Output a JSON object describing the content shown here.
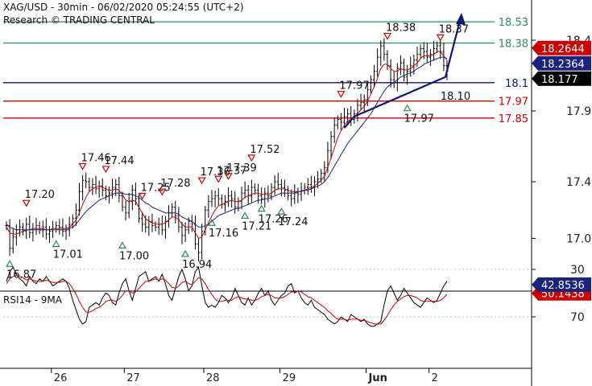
{
  "header": {
    "title": "XAG/USD - 30min - 06/02/2020 05:24:55 (UTC+2)",
    "subtitle": "Research © TRADING CENTRAL"
  },
  "rsi_label": "RSI14 - 9MA",
  "colors": {
    "price": "#000000",
    "ma_fast": "#cc0000",
    "ma_slow": "#1a237e",
    "resistance": "#2e8b57",
    "support_blue": "#0d1670",
    "support_red": "#cc0000",
    "pivot_arrow": "#0d1670"
  },
  "chart_data": [
    {
      "type": "line",
      "name": "price",
      "x_ticks": [
        "26",
        "27",
        "28",
        "29",
        "Jun",
        "2"
      ],
      "y_ticks": [
        17.0,
        17.4,
        17.9,
        18.4
      ],
      "ylim": [
        16.82,
        18.6
      ],
      "close": [
        17.09,
        16.93,
        17.01,
        17.06,
        17.08,
        17.05,
        17.1,
        17.04,
        17.07,
        17.09,
        17.06,
        17.08,
        17.03,
        17.05,
        17.07,
        17.09,
        17.08,
        17.05,
        17.06,
        17.1,
        17.14,
        17.2,
        17.33,
        17.41,
        17.4,
        17.36,
        17.38,
        17.35,
        17.37,
        17.34,
        17.3,
        17.32,
        17.36,
        17.38,
        17.3,
        17.22,
        17.18,
        17.26,
        17.34,
        17.28,
        17.14,
        17.1,
        17.08,
        17.12,
        17.09,
        17.08,
        17.1,
        17.06,
        17.12,
        17.18,
        17.22,
        17.16,
        17.08,
        17.02,
        17.06,
        17.12,
        17.1,
        16.96,
        16.9,
        17.05,
        17.2,
        17.26,
        17.28,
        17.3,
        17.28,
        17.24,
        17.26,
        17.3,
        17.28,
        17.22,
        17.26,
        17.32,
        17.34,
        17.3,
        17.36,
        17.34,
        17.3,
        17.28,
        17.32,
        17.3,
        17.36,
        17.4,
        17.38,
        17.36,
        17.34,
        17.3,
        17.28,
        17.32,
        17.31,
        17.34,
        17.36,
        17.38,
        17.36,
        17.4,
        17.42,
        17.46,
        17.5,
        17.62,
        17.72,
        17.8,
        17.84,
        17.82,
        17.86,
        17.88,
        17.84,
        17.88,
        17.94,
        17.96,
        17.98,
        18.05,
        18.12,
        18.18,
        18.28,
        18.36,
        18.3,
        18.22,
        18.12,
        18.1,
        18.2,
        18.24,
        18.14,
        18.18,
        18.22,
        18.26,
        18.3,
        18.34,
        18.32,
        18.28,
        18.3,
        18.34,
        18.36,
        18.32,
        18.22,
        18.18
      ],
      "ma_fast": [
        17.08,
        17.04,
        17.03,
        17.03,
        17.04,
        17.05,
        17.06,
        17.06,
        17.07,
        17.07,
        17.07,
        17.07,
        17.06,
        17.06,
        17.07,
        17.07,
        17.07,
        17.07,
        17.07,
        17.08,
        17.1,
        17.13,
        17.18,
        17.24,
        17.29,
        17.33,
        17.35,
        17.36,
        17.37,
        17.36,
        17.35,
        17.34,
        17.34,
        17.35,
        17.34,
        17.31,
        17.27,
        17.26,
        17.27,
        17.26,
        17.22,
        17.18,
        17.14,
        17.12,
        17.11,
        17.1,
        17.1,
        17.1,
        17.11,
        17.13,
        17.15,
        17.15,
        17.13,
        17.1,
        17.08,
        17.08,
        17.08,
        17.04,
        17.0,
        17.01,
        17.06,
        17.11,
        17.16,
        17.2,
        17.23,
        17.24,
        17.25,
        17.26,
        17.27,
        17.26,
        17.26,
        17.27,
        17.29,
        17.3,
        17.31,
        17.32,
        17.32,
        17.31,
        17.31,
        17.31,
        17.32,
        17.34,
        17.35,
        17.35,
        17.35,
        17.34,
        17.33,
        17.33,
        17.33,
        17.33,
        17.34,
        17.35,
        17.36,
        17.37,
        17.39,
        17.41,
        17.44,
        17.5,
        17.57,
        17.64,
        17.71,
        17.76,
        17.8,
        17.83,
        17.84,
        17.86,
        17.88,
        17.91,
        17.93,
        17.97,
        18.02,
        18.07,
        18.13,
        18.2,
        18.23,
        18.23,
        18.2,
        18.18,
        18.18,
        18.2,
        18.19,
        18.19,
        18.2,
        18.22,
        18.24,
        18.27,
        18.29,
        18.29,
        18.29,
        18.3,
        18.32,
        18.32,
        18.29,
        18.26
      ],
      "ma_slow": [
        17.1,
        17.08,
        17.07,
        17.06,
        17.06,
        17.06,
        17.06,
        17.06,
        17.06,
        17.06,
        17.06,
        17.06,
        17.06,
        17.06,
        17.06,
        17.06,
        17.06,
        17.06,
        17.06,
        17.07,
        17.08,
        17.1,
        17.13,
        17.16,
        17.19,
        17.21,
        17.23,
        17.25,
        17.27,
        17.28,
        17.29,
        17.3,
        17.31,
        17.32,
        17.32,
        17.32,
        17.31,
        17.31,
        17.31,
        17.3,
        17.29,
        17.27,
        17.25,
        17.24,
        17.22,
        17.21,
        17.2,
        17.19,
        17.18,
        17.18,
        17.18,
        17.18,
        17.17,
        17.15,
        17.14,
        17.13,
        17.12,
        17.1,
        17.08,
        17.08,
        17.09,
        17.1,
        17.12,
        17.14,
        17.16,
        17.17,
        17.18,
        17.19,
        17.2,
        17.21,
        17.21,
        17.22,
        17.23,
        17.24,
        17.25,
        17.26,
        17.27,
        17.27,
        17.28,
        17.28,
        17.29,
        17.3,
        17.31,
        17.32,
        17.32,
        17.32,
        17.32,
        17.32,
        17.33,
        17.33,
        17.34,
        17.34,
        17.35,
        17.36,
        17.37,
        17.38,
        17.4,
        17.43,
        17.47,
        17.51,
        17.55,
        17.59,
        17.63,
        17.67,
        17.7,
        17.73,
        17.76,
        17.79,
        17.82,
        17.85,
        17.88,
        17.92,
        17.96,
        18.0,
        18.04,
        18.07,
        18.09,
        18.1,
        18.12,
        18.14,
        18.15,
        18.16,
        18.17,
        18.18,
        18.2,
        18.21,
        18.23,
        18.24,
        18.25,
        18.26,
        18.27,
        18.28,
        18.28,
        18.27
      ]
    },
    {
      "type": "line",
      "name": "rsi",
      "y_ticks": [
        30,
        70
      ],
      "ylim": [
        20,
        85
      ],
      "rsi": [
        40,
        32,
        28,
        34,
        38,
        40,
        44,
        36,
        40,
        42,
        38,
        40,
        36,
        40,
        44,
        42,
        40,
        38,
        40,
        46,
        56,
        64,
        72,
        76,
        74,
        62,
        60,
        58,
        60,
        54,
        50,
        52,
        58,
        60,
        50,
        42,
        38,
        48,
        56,
        46,
        36,
        34,
        32,
        40,
        38,
        36,
        40,
        34,
        42,
        52,
        56,
        46,
        36,
        30,
        38,
        48,
        44,
        32,
        28,
        44,
        58,
        62,
        60,
        62,
        58,
        52,
        54,
        58,
        54,
        46,
        52,
        58,
        60,
        54,
        60,
        56,
        50,
        46,
        52,
        48,
        56,
        60,
        56,
        52,
        50,
        44,
        42,
        50,
        48,
        54,
        58,
        60,
        56,
        62,
        64,
        66,
        68,
        72,
        74,
        76,
        74,
        70,
        72,
        74,
        68,
        70,
        72,
        74,
        72,
        76,
        78,
        78,
        76,
        74,
        60,
        48,
        44,
        50,
        56,
        52,
        46,
        50,
        54,
        58,
        60,
        62,
        58,
        54,
        56,
        58,
        56,
        50,
        44,
        40
      ],
      "rsi_ma": [
        42,
        38,
        36,
        35,
        36,
        37,
        39,
        38,
        39,
        40,
        40,
        40,
        39,
        40,
        41,
        41,
        41,
        40,
        40,
        42,
        46,
        51,
        57,
        62,
        66,
        66,
        65,
        63,
        62,
        60,
        57,
        56,
        56,
        57,
        55,
        52,
        48,
        48,
        50,
        49,
        46,
        43,
        40,
        40,
        39,
        38,
        39,
        38,
        39,
        42,
        45,
        46,
        44,
        41,
        40,
        42,
        43,
        40,
        37,
        38,
        42,
        47,
        51,
        55,
        57,
        57,
        56,
        56,
        56,
        54,
        53,
        54,
        55,
        55,
        56,
        56,
        55,
        53,
        52,
        51,
        52,
        54,
        54,
        54,
        53,
        51,
        49,
        49,
        48,
        49,
        51,
        53,
        54,
        56,
        58,
        60,
        62,
        65,
        67,
        70,
        72,
        72,
        72,
        73,
        72,
        72,
        72,
        73,
        73,
        74,
        75,
        76,
        76,
        76,
        73,
        69,
        64,
        60,
        57,
        55,
        53,
        52,
        52,
        53,
        54,
        56,
        57,
        57,
        57,
        57,
        57,
        56,
        54,
        51
      ]
    }
  ],
  "levels": [
    {
      "name": "resistance-2",
      "value": 18.53,
      "label": "18.53",
      "color": "#2e8b57"
    },
    {
      "name": "resistance-1",
      "value": 18.38,
      "label": "18.38",
      "color": "#2e8b57"
    },
    {
      "name": "pivot",
      "value": 18.1,
      "label": "18.1",
      "color": "#0d1670"
    },
    {
      "name": "support-1",
      "value": 17.97,
      "label": "17.97",
      "color": "#cc0000"
    },
    {
      "name": "support-2",
      "value": 17.85,
      "label": "17.85",
      "color": "#cc0000"
    }
  ],
  "price_tags": [
    {
      "name": "ma-fast-tag",
      "value": 18.2644,
      "label": "18.2644",
      "bg": "#cc0000"
    },
    {
      "name": "ma-slow-tag",
      "value": 18.2364,
      "label": "18.2364",
      "bg": "#1a237e"
    },
    {
      "name": "last-price-tag",
      "value": 18.177,
      "label": "18.177",
      "bg": "#000000"
    }
  ],
  "rsi_tags": [
    {
      "name": "rsi-ma-tag",
      "value": 50.1438,
      "label": "50.1438",
      "bg": "#cc0000"
    },
    {
      "name": "rsi-tag",
      "value": 42.8536,
      "label": "42.8536",
      "bg": "#1a237e"
    }
  ],
  "annotations": [
    {
      "text": "16.87",
      "idx": 1,
      "value": 16.87,
      "kind": "low"
    },
    {
      "text": "17.20",
      "idx": 6,
      "value": 17.2,
      "kind": "high"
    },
    {
      "text": "17.01",
      "idx": 15,
      "value": 17.01,
      "kind": "low"
    },
    {
      "text": "17.46",
      "idx": 23,
      "value": 17.46,
      "kind": "high"
    },
    {
      "text": "17.44",
      "idx": 30,
      "value": 17.44,
      "kind": "high"
    },
    {
      "text": "17.00",
      "idx": 35,
      "value": 17.0,
      "kind": "low"
    },
    {
      "text": "17.25",
      "idx": 41,
      "value": 17.25,
      "kind": "high"
    },
    {
      "text": "17.28",
      "idx": 47,
      "value": 17.28,
      "kind": "high"
    },
    {
      "text": "16.94",
      "idx": 54,
      "value": 16.94,
      "kind": "low"
    },
    {
      "text": "17.36",
      "idx": 59,
      "value": 17.36,
      "kind": "high"
    },
    {
      "text": "17.37",
      "idx": 64,
      "value": 17.37,
      "kind": "high"
    },
    {
      "text": "17.39",
      "idx": 67,
      "value": 17.39,
      "kind": "high"
    },
    {
      "text": "17.16",
      "idx": 62,
      "value": 17.16,
      "kind": "low"
    },
    {
      "text": "17.52",
      "idx": 74,
      "value": 17.52,
      "kind": "high"
    },
    {
      "text": "17.21",
      "idx": 72,
      "value": 17.21,
      "kind": "low"
    },
    {
      "text": "17.26",
      "idx": 77,
      "value": 17.26,
      "kind": "low"
    },
    {
      "text": "17.24",
      "idx": 83,
      "value": 17.24,
      "kind": "low"
    },
    {
      "text": "17.97",
      "idx": 101,
      "value": 17.97,
      "kind": "high"
    },
    {
      "text": "18.38",
      "idx": 115,
      "value": 18.38,
      "kind": "high"
    },
    {
      "text": "17.97",
      "idx": 121,
      "value": 17.97,
      "kind": "low"
    },
    {
      "text": "18.37",
      "idx": 131,
      "value": 18.37,
      "kind": "high"
    },
    {
      "text": "18.10",
      "idx": 132,
      "value": 18.1,
      "kind": "note"
    }
  ],
  "arrow": {
    "from_idx": 102,
    "from": 17.78,
    "mid_idx": 133,
    "mid": 18.14,
    "to": 18.56
  }
}
